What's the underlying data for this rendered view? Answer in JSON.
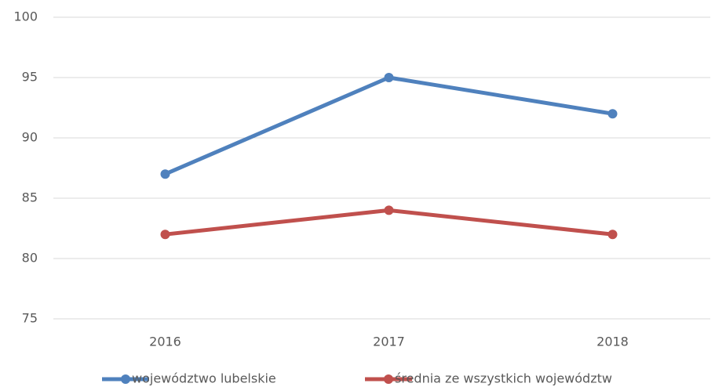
{
  "chart_data": {
    "type": "line",
    "categories": [
      "2016",
      "2017",
      "2018"
    ],
    "series": [
      {
        "name": "województwo lubelskie",
        "color": "#4f81bd",
        "values": [
          87,
          95,
          92
        ]
      },
      {
        "name": "średnia ze wszystkich województw",
        "color": "#c0504d",
        "values": [
          82,
          84,
          82
        ]
      }
    ],
    "ylim": [
      75,
      100
    ],
    "yticks": [
      75,
      80,
      85,
      90,
      95,
      100
    ],
    "grid": true,
    "legend": "bottom"
  }
}
